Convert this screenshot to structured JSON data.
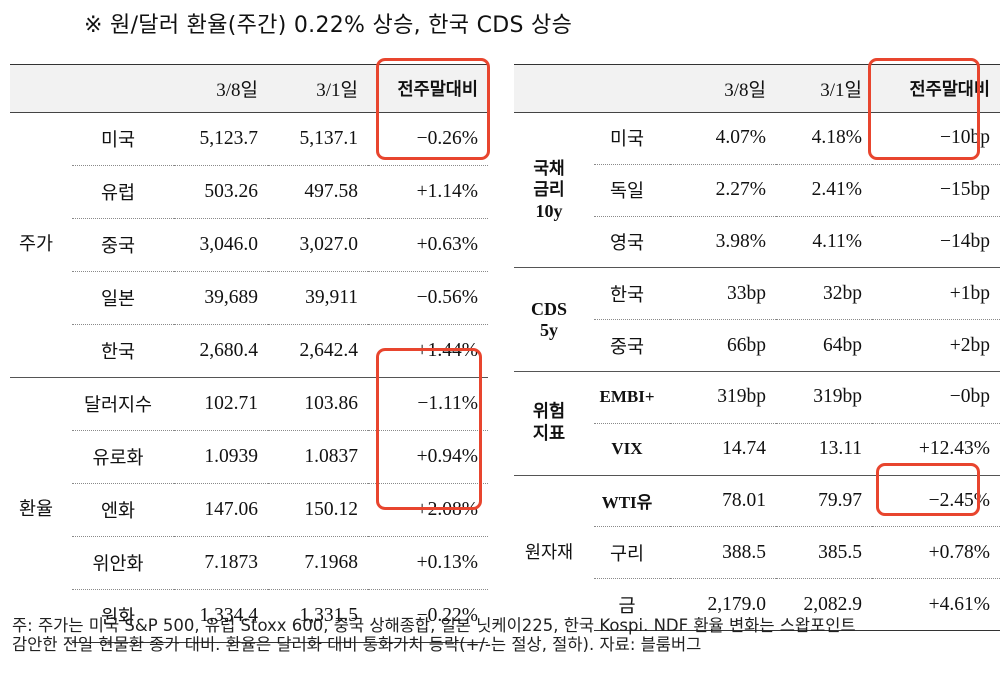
{
  "title": "※ 원/달러 환율(주간) 0.22% 상승, 한국 CDS 상승",
  "left_table": {
    "headers": [
      "",
      "",
      "3/8일",
      "3/1일",
      "전주말대비"
    ],
    "groups": [
      {
        "label": "주가",
        "rows": [
          {
            "name": "미국",
            "cur": "5,123.7",
            "prev": "5,137.1",
            "chg": "−0.26%"
          },
          {
            "name": "유럽",
            "cur": "503.26",
            "prev": "497.58",
            "chg": "+1.14%"
          },
          {
            "name": "중국",
            "cur": "3,046.0",
            "prev": "3,027.0",
            "chg": "+0.63%"
          },
          {
            "name": "일본",
            "cur": "39,689",
            "prev": "39,911",
            "chg": "−0.56%"
          },
          {
            "name": "한국",
            "cur": "2,680.4",
            "prev": "2,642.4",
            "chg": "+1.44%"
          }
        ]
      },
      {
        "label": "환율",
        "rows": [
          {
            "name": "달러지수",
            "cur": "102.71",
            "prev": "103.86",
            "chg": "−1.11%"
          },
          {
            "name": "유로화",
            "cur": "1.0939",
            "prev": "1.0837",
            "chg": "+0.94%"
          },
          {
            "name": "엔화",
            "cur": "147.06",
            "prev": "150.12",
            "chg": "+2.08%"
          },
          {
            "name": "위안화",
            "cur": "7.1873",
            "prev": "7.1968",
            "chg": "+0.13%"
          },
          {
            "name": "원화",
            "cur": "1,334.4",
            "prev": "1,331.5",
            "chg": "−0.22%"
          }
        ]
      }
    ]
  },
  "right_table": {
    "headers": [
      "",
      "",
      "3/8일",
      "3/1일",
      "전주말대비"
    ],
    "groups": [
      {
        "label_lines": [
          "국채",
          "금리",
          "10y"
        ],
        "rows": [
          {
            "name": "미국",
            "cur": "4.07%",
            "prev": "4.18%",
            "chg": "−10bp"
          },
          {
            "name": "독일",
            "cur": "2.27%",
            "prev": "2.41%",
            "chg": "−15bp"
          },
          {
            "name": "영국",
            "cur": "3.98%",
            "prev": "4.11%",
            "chg": "−14bp"
          }
        ]
      },
      {
        "label_lines": [
          "CDS",
          "5y"
        ],
        "rows": [
          {
            "name": "한국",
            "cur": "33bp",
            "prev": "32bp",
            "chg": "+1bp"
          },
          {
            "name": "중국",
            "cur": "66bp",
            "prev": "64bp",
            "chg": "+2bp"
          }
        ]
      },
      {
        "label_lines": [
          "위험",
          "지표"
        ],
        "rows": [
          {
            "name": "EMBI+",
            "cur": "319bp",
            "prev": "319bp",
            "chg": "−0bp"
          },
          {
            "name": "VIX",
            "cur": "14.74",
            "prev": "13.11",
            "chg": "+12.43%"
          }
        ]
      },
      {
        "label_lines": [
          "원자재"
        ],
        "rows": [
          {
            "name": "WTI유",
            "cur": "78.01",
            "prev": "79.97",
            "chg": "−2.45%"
          },
          {
            "name": "구리",
            "cur": "388.5",
            "prev": "385.5",
            "chg": "+0.78%"
          },
          {
            "name": "금",
            "cur": "2,179.0",
            "prev": "2,082.9",
            "chg": "+4.61%"
          }
        ]
      }
    ]
  },
  "highlight_color": "#e8452e",
  "footnote": {
    "line1": "주: 주가는 미국 S&P 500, 유럽 Stoxx 600, 중국 상해종합, 일본 닛케이225, 한국 Kospi. NDF 환율 변화는 스왑포인트",
    "line2": "감안한 전일 현물환 종가 대비. 환율은 달러화 대비 통화가치 등락(+/-는 절상, 절하). 자료: 블룸버그"
  }
}
